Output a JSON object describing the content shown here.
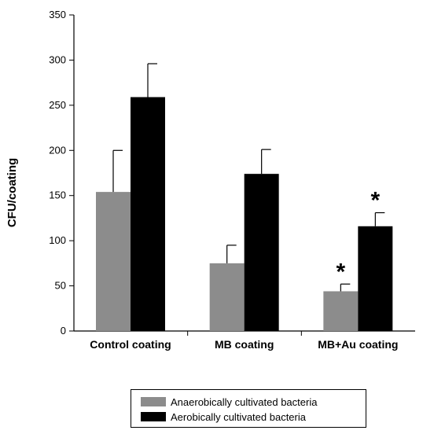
{
  "chart_data": {
    "type": "bar",
    "categories": [
      "Control coating",
      "MB coating",
      "MB+Au coating"
    ],
    "series": [
      {
        "name": "Anaerobically cultivated bacteria",
        "color": "#8c8c8c",
        "values": [
          154,
          75,
          44
        ],
        "errors": [
          46,
          20,
          8
        ],
        "significant": [
          false,
          false,
          true
        ]
      },
      {
        "name": "Aerobically cultivated bacteria",
        "color": "#000000",
        "values": [
          259,
          174,
          116
        ],
        "errors": [
          37,
          27,
          15
        ],
        "significant": [
          false,
          false,
          true
        ]
      }
    ],
    "significance_marker": "*",
    "ylabel": "CFU/coating",
    "xlabel": "",
    "ylim": [
      0,
      350
    ],
    "yticks": [
      0,
      50,
      100,
      150,
      200,
      250,
      300,
      350
    ],
    "grid": false,
    "legend_position": "bottom"
  }
}
